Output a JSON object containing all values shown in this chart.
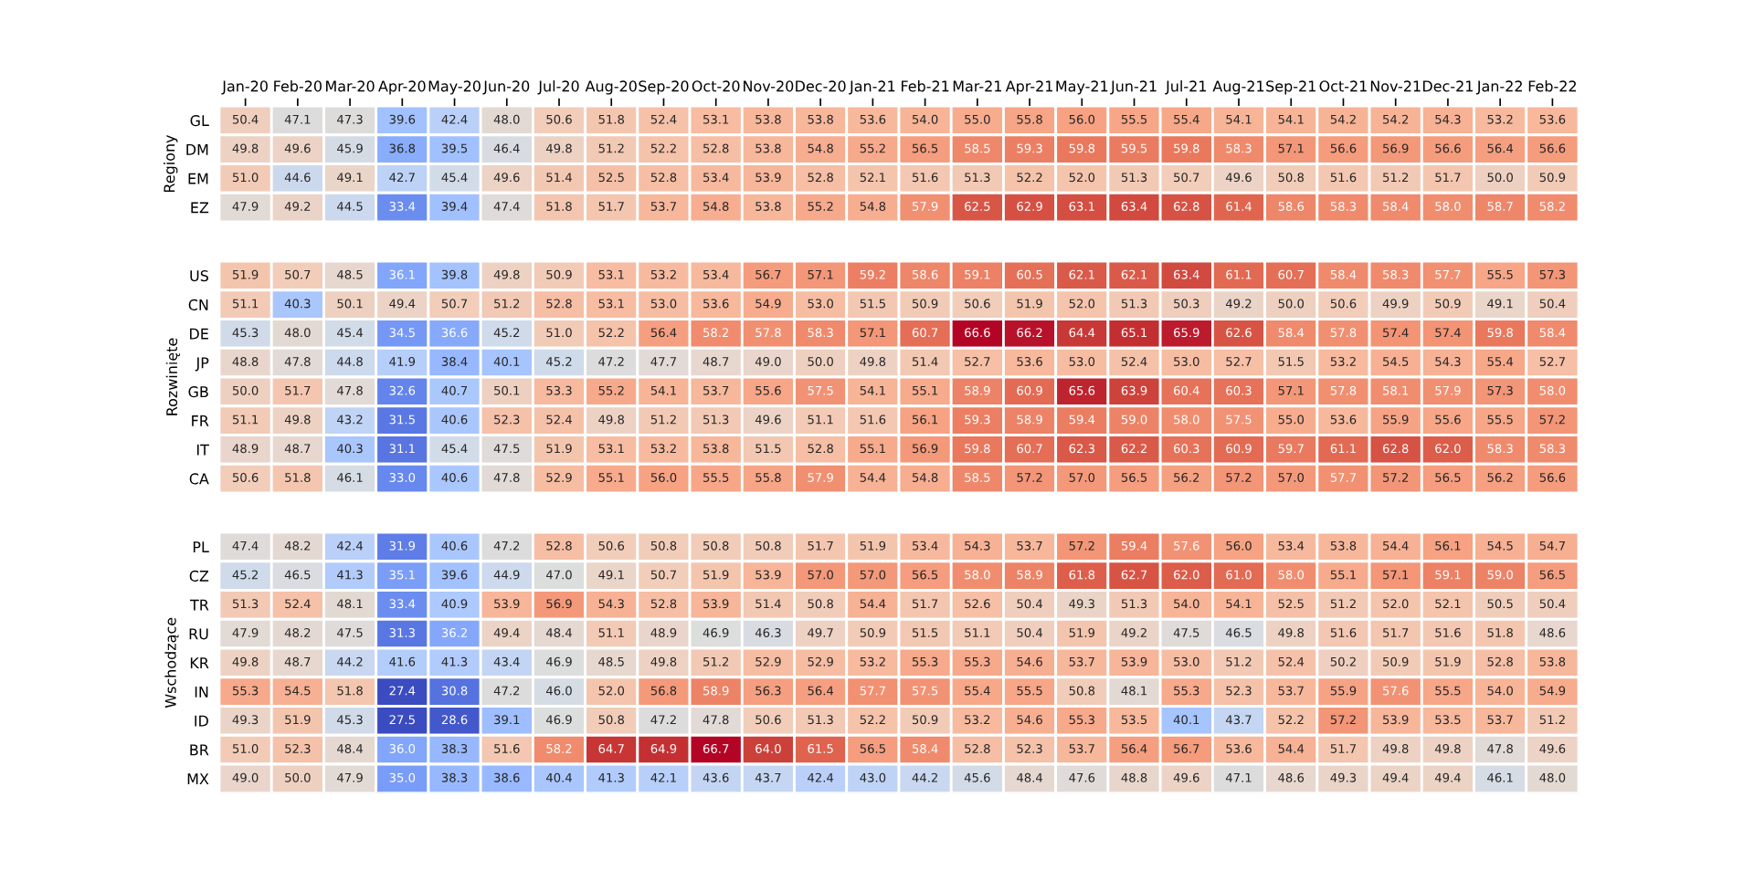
{
  "chart_data": [
    {
      "type": "heatmap",
      "ylabel": "Regiony",
      "categories": [
        "Jan-20",
        "Feb-20",
        "Mar-20",
        "Apr-20",
        "May-20",
        "Jun-20",
        "Jul-20",
        "Aug-20",
        "Sep-20",
        "Oct-20",
        "Nov-20",
        "Dec-20",
        "Jan-21",
        "Feb-21",
        "Mar-21",
        "Apr-21",
        "May-21",
        "Jun-21",
        "Jul-21",
        "Aug-21",
        "Sep-21",
        "Oct-21",
        "Nov-21",
        "Dec-21",
        "Jan-22",
        "Feb-22"
      ],
      "y_categories": [
        "GL",
        "DM",
        "EM",
        "EZ"
      ],
      "cells": [
        [
          50.4,
          47.1,
          47.3,
          39.6,
          42.4,
          48.0,
          50.6,
          51.8,
          52.4,
          53.1,
          53.8,
          53.8,
          53.6,
          54.0,
          55.0,
          55.8,
          56.0,
          55.5,
          55.4,
          54.1,
          54.1,
          54.2,
          54.2,
          54.3,
          53.2,
          53.6
        ],
        [
          49.8,
          49.6,
          45.9,
          36.8,
          39.5,
          46.4,
          49.8,
          51.2,
          52.2,
          52.8,
          53.8,
          54.8,
          55.2,
          56.5,
          58.5,
          59.3,
          59.8,
          59.5,
          59.8,
          58.3,
          57.1,
          56.6,
          56.9,
          56.6,
          56.4,
          56.6
        ],
        [
          51.0,
          44.6,
          49.1,
          42.7,
          45.4,
          49.6,
          51.4,
          52.5,
          52.8,
          53.4,
          53.9,
          52.8,
          52.1,
          51.6,
          51.3,
          52.2,
          52.0,
          51.3,
          50.7,
          49.6,
          50.8,
          51.6,
          51.2,
          51.7,
          50.0,
          50.9
        ],
        [
          47.9,
          49.2,
          44.5,
          33.4,
          39.4,
          47.4,
          51.8,
          51.7,
          53.7,
          54.8,
          53.8,
          55.2,
          54.8,
          57.9,
          62.5,
          62.9,
          63.1,
          63.4,
          62.8,
          61.4,
          58.6,
          58.3,
          58.4,
          58.0,
          58.7,
          58.2
        ]
      ],
      "cell_labels": [
        [
          "50.4",
          "47.1",
          "47.3",
          "39.6",
          "42.4",
          "48.0",
          "50.6",
          "51.8",
          "52.4",
          "53.1",
          "53.8",
          "53.8",
          "53.6",
          "54.0",
          "55.0",
          "55.8",
          "56.0",
          "55.5",
          "55.4",
          "54.1",
          "54.1",
          "54.2",
          "54.2",
          "54.3",
          "53.2",
          "53.6"
        ],
        [
          "49.8",
          "49.6",
          "45.9",
          "36.8",
          "39.5",
          "46.4",
          "49.8",
          "51.2",
          "52.2",
          "52.8",
          "53.8",
          "54.8",
          "55.2",
          "56.5",
          "58.5",
          "59.3",
          "59.8",
          "59.5",
          "59.8",
          "58.3",
          "57.1",
          "56.6",
          "56.9",
          "56.6",
          "56.4",
          "56.6"
        ],
        [
          "51.0",
          "44.6",
          "49.1",
          "42.7",
          "45.4",
          "49.6",
          "51.4",
          "52.5",
          "52.8",
          "53.4",
          "53.9",
          "52.8",
          "52.1",
          "51.6",
          "51.3",
          "52.2",
          "52.0",
          "51.3",
          "50.7",
          "49.6",
          "50.8",
          "51.6",
          "51.2",
          "51.7",
          "50.0",
          "50.9"
        ],
        [
          "47.9",
          "49.2",
          "44.5",
          "33.4",
          "39.4",
          "47.4",
          "51.8",
          "51.7",
          "53.7",
          "54.8",
          "53.8",
          "55.2",
          "54.8",
          "57.9",
          "62.5",
          "62.9",
          "63.1",
          "63.4",
          "62.8",
          "61.4",
          "58.6",
          "58.3",
          "58.4",
          "58.0",
          "58.7",
          "58.2"
        ]
      ],
      "data_labels": true
    },
    {
      "type": "heatmap",
      "ylabel": "Rozwinięte",
      "categories": [
        null,
        null,
        null,
        null,
        null,
        null,
        null,
        null,
        null,
        null,
        null,
        null,
        null,
        null,
        null,
        null,
        null,
        null,
        null,
        null,
        null,
        null,
        null,
        null,
        null,
        null
      ],
      "y_categories": [
        "US",
        "CN",
        "DE",
        "JP",
        "GB",
        "FR",
        "IT",
        "CA"
      ],
      "cells": [
        [
          51.9,
          50.7,
          48.5,
          36.1,
          39.8,
          49.8,
          50.9,
          53.1,
          53.2,
          53.4,
          56.7,
          57.1,
          59.2,
          58.6,
          59.1,
          60.5,
          62.1,
          62.1,
          63.4,
          61.1,
          60.7,
          58.4,
          58.3,
          57.7,
          55.5,
          57.3
        ],
        [
          51.1,
          40.3,
          50.1,
          49.4,
          50.7,
          51.2,
          52.8,
          53.1,
          53.0,
          53.6,
          54.9,
          53.0,
          51.5,
          50.9,
          50.6,
          51.9,
          52.0,
          51.3,
          50.3,
          49.2,
          50.0,
          50.6,
          49.9,
          50.9,
          49.1,
          50.4
        ],
        [
          45.3,
          48.0,
          45.4,
          34.5,
          36.6,
          45.2,
          51.0,
          52.2,
          56.4,
          58.2,
          57.8,
          58.3,
          57.1,
          60.7,
          66.6,
          66.2,
          64.4,
          65.1,
          65.9,
          62.6,
          58.4,
          57.8,
          57.4,
          57.4,
          59.8,
          58.4
        ],
        [
          48.8,
          47.8,
          44.8,
          41.9,
          38.4,
          40.1,
          45.2,
          47.2,
          47.7,
          48.7,
          49.0,
          50.0,
          49.8,
          51.4,
          52.7,
          53.6,
          53.0,
          52.4,
          53.0,
          52.7,
          51.5,
          53.2,
          54.5,
          54.3,
          55.4,
          52.7
        ],
        [
          50.0,
          51.7,
          47.8,
          32.6,
          40.7,
          50.1,
          53.3,
          55.2,
          54.1,
          53.7,
          55.6,
          57.5,
          54.1,
          55.1,
          58.9,
          60.9,
          65.6,
          63.9,
          60.4,
          60.3,
          57.1,
          57.8,
          58.1,
          57.9,
          57.3,
          58.0
        ],
        [
          51.1,
          49.8,
          43.2,
          31.5,
          40.6,
          52.3,
          52.4,
          49.8,
          51.2,
          51.3,
          49.6,
          51.1,
          51.6,
          56.1,
          59.3,
          58.9,
          59.4,
          59.0,
          58.0,
          57.5,
          55.0,
          53.6,
          55.9,
          55.6,
          55.5,
          57.2
        ],
        [
          48.9,
          48.7,
          40.3,
          31.1,
          45.4,
          47.5,
          51.9,
          53.1,
          53.2,
          53.8,
          51.5,
          52.8,
          55.1,
          56.9,
          59.8,
          60.7,
          62.3,
          62.2,
          60.3,
          60.9,
          59.7,
          61.1,
          62.8,
          62.0,
          58.3,
          58.3
        ],
        [
          50.6,
          51.8,
          46.1,
          33.0,
          40.6,
          47.8,
          52.9,
          55.1,
          56.0,
          55.5,
          55.8,
          57.9,
          54.4,
          54.8,
          58.5,
          57.2,
          57.0,
          56.5,
          56.2,
          57.2,
          57.0,
          57.7,
          57.2,
          56.5,
          56.2,
          56.6
        ]
      ],
      "cell_labels": [
        [
          "51.9",
          "50.7",
          "48.5",
          "36.1",
          "39.8",
          "49.8",
          "50.9",
          "53.1",
          "53.2",
          "53.4",
          "56.7",
          "57.1",
          "59.2",
          "58.6",
          "59.1",
          "60.5",
          "62.1",
          "62.1",
          "63.4",
          "61.1",
          "60.7",
          "58.4",
          "58.3",
          "57.7",
          "55.5",
          "57.3"
        ],
        [
          "51.1",
          "40.3",
          "50.1",
          "49.4",
          "50.7",
          "51.2",
          "52.8",
          "53.1",
          "53.0",
          "53.6",
          "54.9",
          "53.0",
          "51.5",
          "50.9",
          "50.6",
          "51.9",
          "52.0",
          "51.3",
          "50.3",
          "49.2",
          "50.0",
          "50.6",
          "49.9",
          "50.9",
          "49.1",
          "50.4"
        ],
        [
          "45.3",
          "48.0",
          "45.4",
          "34.5",
          "36.6",
          "45.2",
          "51.0",
          "52.2",
          "56.4",
          "58.2",
          "57.8",
          "58.3",
          "57.1",
          "60.7",
          "66.6",
          "66.2",
          "64.4",
          "65.1",
          "65.9",
          "62.6",
          "58.4",
          "57.8",
          "57.4",
          "57.4",
          "59.8",
          "58.4"
        ],
        [
          "48.8",
          "47.8",
          "44.8",
          "41.9",
          "38.4",
          "40.1",
          "45.2",
          "47.2",
          "47.7",
          "48.7",
          "49.0",
          "50.0",
          "49.8",
          "51.4",
          "52.7",
          "53.6",
          "53.0",
          "52.4",
          "53.0",
          "52.7",
          "51.5",
          "53.2",
          "54.5",
          "54.3",
          "55.4",
          "52.7"
        ],
        [
          "50.0",
          "51.7",
          "47.8",
          "32.6",
          "40.7",
          "50.1",
          "53.3",
          "55.2",
          "54.1",
          "53.7",
          "55.6",
          "57.5",
          "54.1",
          "55.1",
          "58.9",
          "60.9",
          "65.6",
          "63.9",
          "60.4",
          "60.3",
          "57.1",
          "57.8",
          "58.1",
          "57.9",
          "57.3",
          "58.0"
        ],
        [
          "51.1",
          "49.8",
          "43.2",
          "31.5",
          "40.6",
          "52.3",
          "52.4",
          "49.8",
          "51.2",
          "51.3",
          "49.6",
          "51.1",
          "51.6",
          "56.1",
          "59.3",
          "58.9",
          "59.4",
          "59.0",
          "58.0",
          "57.5",
          "55.0",
          "53.6",
          "55.9",
          "55.6",
          "55.5",
          "57.2"
        ],
        [
          "48.9",
          "48.7",
          "40.3",
          "31.1",
          "45.4",
          "47.5",
          "51.9",
          "53.1",
          "53.2",
          "53.8",
          "51.5",
          "52.8",
          "55.1",
          "56.9",
          "59.8",
          "60.7",
          "62.3",
          "62.2",
          "60.3",
          "60.9",
          "59.7",
          "61.1",
          "62.8",
          "62.0",
          "58.3",
          "58.3"
        ],
        [
          "50.6",
          "51.8",
          "46.1",
          "33.0",
          "40.6",
          "47.8",
          "52.9",
          "55.1",
          "56.0",
          "55.5",
          "55.8",
          "57.9",
          "54.4",
          "54.8",
          "58.5",
          "57.2",
          "57.0",
          "56.5",
          "56.2",
          "57.2",
          "57.0",
          "57.7",
          "57.2",
          "56.5",
          "56.2",
          "56.6"
        ]
      ],
      "data_labels": true,
      "tick_labels": "y"
    },
    {
      "type": "heatmap",
      "ylabel": "Wschodzące",
      "categories": [
        null,
        null,
        null,
        null,
        null,
        null,
        null,
        null,
        null,
        null,
        null,
        null,
        null,
        null,
        null,
        null,
        null,
        null,
        null,
        null,
        null,
        null,
        null,
        null,
        null,
        null
      ],
      "y_categories": [
        "PL",
        "CZ",
        "TR",
        "RU",
        "KR",
        "IN",
        "ID",
        "BR",
        "MX"
      ],
      "cells": [
        [
          47.4,
          48.2,
          42.4,
          31.9,
          40.6,
          47.2,
          52.8,
          50.6,
          50.8,
          50.8,
          50.8,
          51.7,
          51.9,
          53.4,
          54.3,
          53.7,
          57.2,
          59.4,
          57.6,
          56.0,
          53.4,
          53.8,
          54.4,
          56.1,
          54.5,
          54.7
        ],
        [
          45.2,
          46.5,
          41.3,
          35.1,
          39.6,
          44.9,
          47.0,
          49.1,
          50.7,
          51.9,
          53.9,
          57.0,
          57.0,
          56.5,
          58.0,
          58.9,
          61.8,
          62.7,
          62.0,
          61.0,
          58.0,
          55.1,
          57.1,
          59.1,
          59.0,
          56.5
        ],
        [
          51.3,
          52.4,
          48.1,
          33.4,
          40.9,
          53.9,
          56.9,
          54.3,
          52.8,
          53.9,
          51.4,
          50.8,
          54.4,
          51.7,
          52.6,
          50.4,
          49.3,
          51.3,
          54.0,
          54.1,
          52.5,
          51.2,
          52.0,
          52.1,
          50.5,
          50.4
        ],
        [
          47.9,
          48.2,
          47.5,
          31.3,
          36.2,
          49.4,
          48.4,
          51.1,
          48.9,
          46.9,
          46.3,
          49.7,
          50.9,
          51.5,
          51.1,
          50.4,
          51.9,
          49.2,
          47.5,
          46.5,
          49.8,
          51.6,
          51.7,
          51.6,
          51.8,
          48.6
        ],
        [
          49.8,
          48.7,
          44.2,
          41.6,
          41.3,
          43.4,
          46.9,
          48.5,
          49.8,
          51.2,
          52.9,
          52.9,
          53.2,
          55.3,
          55.3,
          54.6,
          53.7,
          53.9,
          53.0,
          51.2,
          52.4,
          50.2,
          50.9,
          51.9,
          52.8,
          53.8
        ],
        [
          55.3,
          54.5,
          51.8,
          27.4,
          30.8,
          47.2,
          46.0,
          52.0,
          56.8,
          58.9,
          56.3,
          56.4,
          57.7,
          57.5,
          55.4,
          55.5,
          50.8,
          48.1,
          55.3,
          52.3,
          53.7,
          55.9,
          57.6,
          55.5,
          54.0,
          54.9
        ],
        [
          49.3,
          51.9,
          45.3,
          27.5,
          28.6,
          39.1,
          46.9,
          50.8,
          47.2,
          47.8,
          50.6,
          51.3,
          52.2,
          50.9,
          53.2,
          54.6,
          55.3,
          53.5,
          40.1,
          43.7,
          52.2,
          57.2,
          53.9,
          53.5,
          53.7,
          51.2
        ],
        [
          51.0,
          52.3,
          48.4,
          36.0,
          38.3,
          51.6,
          58.2,
          64.7,
          64.9,
          66.7,
          64.0,
          61.5,
          56.5,
          58.4,
          52.8,
          52.3,
          53.7,
          56.4,
          56.7,
          53.6,
          54.4,
          51.7,
          49.8,
          49.8,
          47.8,
          49.6
        ],
        [
          49.0,
          50.0,
          47.9,
          35.0,
          38.3,
          38.6,
          40.4,
          41.3,
          42.1,
          43.6,
          43.7,
          42.4,
          43.0,
          44.2,
          45.6,
          48.4,
          47.6,
          48.8,
          49.6,
          47.1,
          48.6,
          49.3,
          49.4,
          49.4,
          46.1,
          48.0
        ]
      ],
      "cell_labels": [
        [
          "47.4",
          "48.2",
          "42.4",
          "31.9",
          "40.6",
          "47.2",
          "52.8",
          "50.6",
          "50.8",
          "50.8",
          "50.8",
          "51.7",
          "51.9",
          "53.4",
          "54.3",
          "53.7",
          "57.2",
          "59.4",
          "57.6",
          "56.0",
          "53.4",
          "53.8",
          "54.4",
          "56.1",
          "54.5",
          "54.7"
        ],
        [
          "45.2",
          "46.5",
          "41.3",
          "35.1",
          "39.6",
          "44.9",
          "47.0",
          "49.1",
          "50.7",
          "51.9",
          "53.9",
          "57.0",
          "57.0",
          "56.5",
          "58.0",
          "58.9",
          "61.8",
          "62.7",
          "62.0",
          "61.0",
          "58.0",
          "55.1",
          "57.1",
          "59.1",
          "59.0",
          "56.5"
        ],
        [
          "51.3",
          "52.4",
          "48.1",
          "33.4",
          "40.9",
          "53.9",
          "56.9",
          "54.3",
          "52.8",
          "53.9",
          "51.4",
          "50.8",
          "54.4",
          "51.7",
          "52.6",
          "50.4",
          "49.3",
          "51.3",
          "54.0",
          "54.1",
          "52.5",
          "51.2",
          "52.0",
          "52.1",
          "50.5",
          "50.4"
        ],
        [
          "47.9",
          "48.2",
          "47.5",
          "31.3",
          "36.2",
          "49.4",
          "48.4",
          "51.1",
          "48.9",
          "46.9",
          "46.3",
          "49.7",
          "50.9",
          "51.5",
          "51.1",
          "50.4",
          "51.9",
          "49.2",
          "47.5",
          "46.5",
          "49.8",
          "51.6",
          "51.7",
          "51.6",
          "51.8",
          "48.6"
        ],
        [
          "49.8",
          "48.7",
          "44.2",
          "41.6",
          "41.3",
          "43.4",
          "46.9",
          "48.5",
          "49.8",
          "51.2",
          "52.9",
          "52.9",
          "53.2",
          "55.3",
          "55.3",
          "54.6",
          "53.7",
          "53.9",
          "53.0",
          "51.2",
          "52.4",
          "50.2",
          "50.9",
          "51.9",
          "52.8",
          "53.8"
        ],
        [
          "55.3",
          "54.5",
          "51.8",
          "27.4",
          "30.8",
          "47.2",
          "46.0",
          "52.0",
          "56.8",
          "58.9",
          "56.3",
          "56.4",
          "57.7",
          "57.5",
          "55.4",
          "55.5",
          "50.8",
          "48.1",
          "55.3",
          "52.3",
          "53.7",
          "55.9",
          "57.6",
          "55.5",
          "54.0",
          "54.9"
        ],
        [
          "49.3",
          "51.9",
          "45.3",
          "27.5",
          "28.6",
          "39.1",
          "46.9",
          "50.8",
          "47.2",
          "47.8",
          "50.6",
          "51.3",
          "52.2",
          "50.9",
          "53.2",
          "54.6",
          "55.3",
          "53.5",
          "40.1",
          "43.7",
          "52.2",
          "57.2",
          "53.9",
          "53.5",
          "53.7",
          "51.2"
        ],
        [
          "51.0",
          "52.3",
          "48.4",
          "36.0",
          "38.3",
          "51.6",
          "58.2",
          "64.7",
          "64.9",
          "66.7",
          "64.0",
          "61.5",
          "56.5",
          "58.4",
          "52.8",
          "52.3",
          "53.7",
          "56.4",
          "56.7",
          "53.6",
          "54.4",
          "51.7",
          "49.8",
          "49.8",
          "47.8",
          "49.6"
        ],
        [
          "49.0",
          "50.0",
          "47.9",
          "35.0",
          "38.3",
          "38.6",
          "40.4",
          "41.3",
          "42.1",
          "43.6",
          "43.7",
          "42.4",
          "43.0",
          "44.2",
          "45.6",
          "48.4",
          "47.6",
          "48.8",
          "49.6",
          "47.1",
          "48.6",
          "49.3",
          "49.4",
          "49.4",
          "46.1",
          "48.0"
        ]
      ],
      "data_labels": true,
      "tick_labels": "y"
    }
  ]
}
